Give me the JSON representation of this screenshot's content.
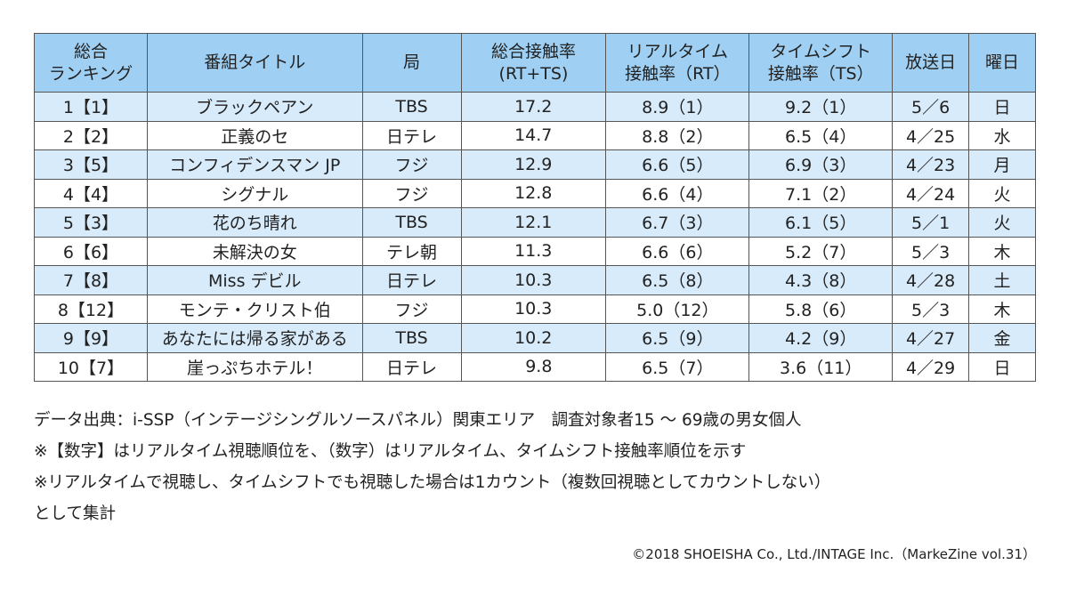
{
  "headers": [
    [
      "総合",
      "ランキング"
    ],
    [
      "番組タイトル",
      ""
    ],
    [
      "局",
      ""
    ],
    [
      "総合接触率",
      "(RT+TS)"
    ],
    [
      "リアルタイム",
      "接触率（RT）"
    ],
    [
      "タイムシフト",
      "接触率（TS）"
    ],
    [
      "放送日",
      ""
    ],
    [
      "曜日",
      ""
    ]
  ],
  "rows": [
    [
      "1【1】",
      "ブラックペアン",
      "TBS",
      "17.2",
      "8.9（1）",
      "9.2（1）",
      "5／6",
      "日"
    ],
    [
      "2【2】",
      "正義のセ",
      "日テレ",
      "14.7",
      "8.8（2）",
      "6.5（4）",
      "4／25",
      "水"
    ],
    [
      "3【5】",
      "コンフィデンスマン JP",
      "フジ",
      "12.9",
      "6.6（5）",
      "6.9（3）",
      "4／23",
      "月"
    ],
    [
      "4【4】",
      "シグナル",
      "フジ",
      "12.8",
      "6.6（4）",
      "7.1（2）",
      "4／24",
      "火"
    ],
    [
      "5【3】",
      "花のち晴れ",
      "TBS",
      "12.1",
      "6.7（3）",
      "6.1（5）",
      "5／1",
      "火"
    ],
    [
      "6【6】",
      "未解決の女",
      "テレ朝",
      "11.3",
      "6.6（6）",
      "5.2（7）",
      "5／3",
      "木"
    ],
    [
      "7【8】",
      "Miss デビル",
      "日テレ",
      "10.3",
      "6.5（8）",
      "4.3（8）",
      "4／28",
      "土"
    ],
    [
      "8【12】",
      "モンテ・クリスト伯",
      "フジ",
      "10.3",
      "5.0（12）",
      "5.8（6）",
      "5／3",
      "木"
    ],
    [
      "9【9】",
      "あなたには帰る家がある",
      "TBS",
      "10.2",
      "6.5（9）",
      "4.2（9）",
      "4／27",
      "金"
    ],
    [
      "10【7】",
      "崖っぷちホテル！",
      "日テレ",
      "9.8",
      "6.5（7）",
      "3.6（11）",
      "4／29",
      "日"
    ]
  ],
  "notes": [
    "データ出典：i-SSP（インテージシングルソースパネル）関東エリア　調査対象者15 ～ 69歳の男女個人",
    "※【数字】はリアルタイム視聴順位を、（数字）はリアルタイム、タイムシフト接触率順位を示す",
    "※リアルタイムで視聴し、タイムシフトでも視聴した場合は1カウント（複数回視聴としてカウントしない）",
    "として集計"
  ],
  "copyright": "©2018 SHOEISHA Co., Ltd./INTAGE Inc.（MarkeZine vol.31）"
}
